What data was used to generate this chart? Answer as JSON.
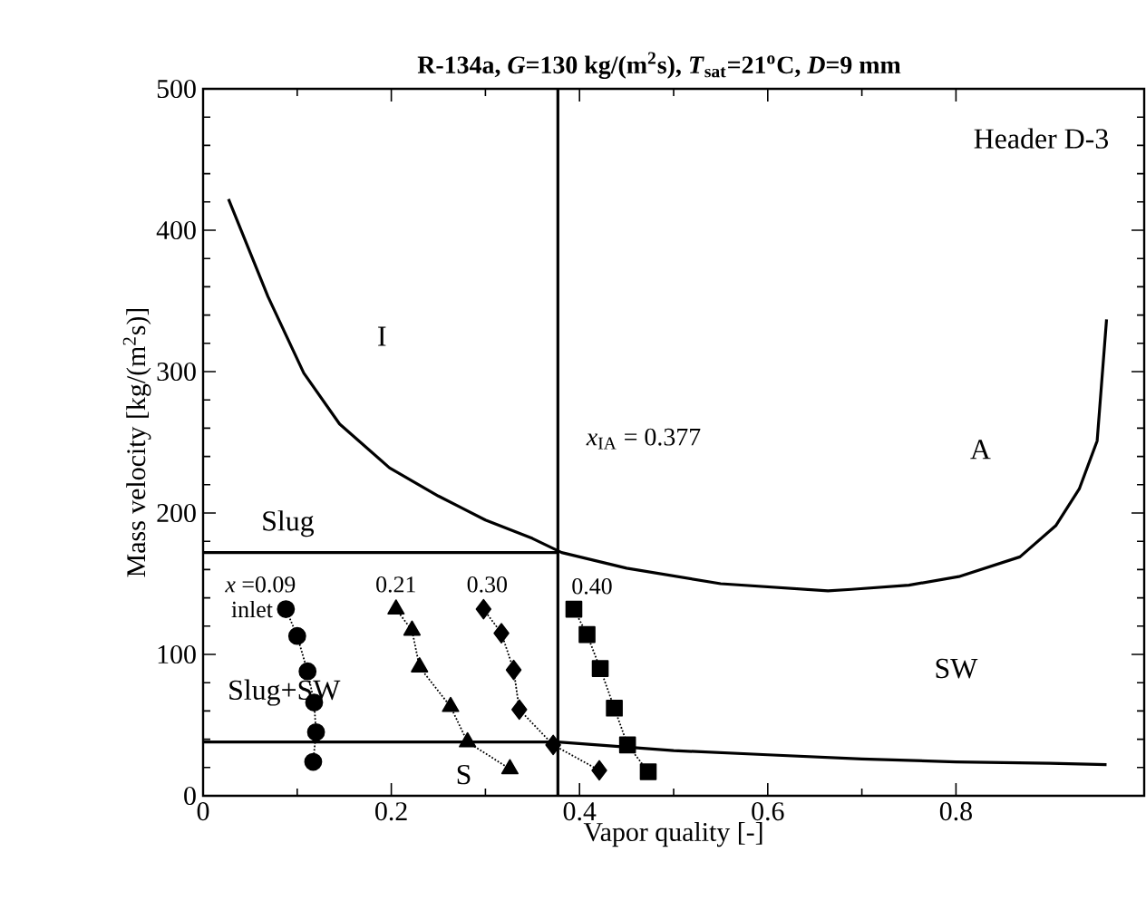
{
  "chart_data": {
    "type": "line",
    "title": "R-134a, *G*=130 kg/(m$^{2}$s), *T*$_{sat}$=21$^{o}$C, *D*=9 mm",
    "xlabel": "Vapor quality [-]",
    "ylabel": "Mass velocity [kg/(m$^{2}$s)]",
    "xlim": [
      0,
      1
    ],
    "ylim": [
      0,
      500
    ],
    "xticks": [
      0,
      0.2,
      0.4,
      0.6,
      0.8
    ],
    "yticks": [
      0,
      100,
      200,
      300,
      400,
      500
    ],
    "grid": false,
    "series": [
      {
        "color": "#000000",
        "marker": "none",
        "line_style": "solid",
        "x": [
          0.027,
          0.069,
          0.107,
          0.145,
          0.198,
          0.25,
          0.3,
          0.35,
          0.381,
          0.45,
          0.55,
          0.664,
          0.689,
          0.75,
          0.803,
          0.868,
          0.906,
          0.931,
          0.95,
          0.96
        ],
        "values": [
          422,
          353,
          299,
          263,
          232,
          212,
          195,
          182,
          172,
          161,
          150,
          145,
          146,
          149,
          155,
          169,
          191,
          217,
          251,
          337
        ]
      },
      {
        "color": "#000000",
        "marker": "none",
        "line_style": "solid",
        "x": [
          0.377,
          0.5,
          0.6,
          0.7,
          0.8,
          0.9,
          0.96
        ],
        "values": [
          38,
          32,
          29,
          26,
          24,
          23,
          22
        ]
      },
      {
        "color": "#000000",
        "marker": "none",
        "line_style": "solid",
        "x": [
          0.377,
          0.377
        ],
        "values": [
          0,
          500
        ]
      },
      {
        "color": "#000000",
        "marker": "none",
        "line_style": "solid",
        "x": [
          0,
          0.377
        ],
        "values": [
          172,
          172
        ]
      },
      {
        "color": "#000000",
        "marker": "none",
        "line_style": "solid",
        "x": [
          0,
          0.377
        ],
        "values": [
          38,
          38
        ]
      },
      {
        "color": "#000000",
        "marker": "circle",
        "line_style": "dotted",
        "x": [
          0.088,
          0.1,
          0.111,
          0.118,
          0.12,
          0.117
        ],
        "values": [
          132,
          113,
          88,
          66,
          45,
          24
        ]
      },
      {
        "color": "#000000",
        "marker": "triangle",
        "line_style": "dotted",
        "x": [
          0.205,
          0.222,
          0.23,
          0.263,
          0.281,
          0.326
        ],
        "values": [
          132,
          117,
          91,
          63,
          38,
          19
        ]
      },
      {
        "color": "#000000",
        "marker": "diamond",
        "line_style": "dotted",
        "x": [
          0.298,
          0.317,
          0.33,
          0.336,
          0.372,
          0.421
        ],
        "values": [
          132,
          115,
          89,
          61,
          36,
          18
        ]
      },
      {
        "color": "#000000",
        "marker": "square",
        "line_style": "dotted",
        "x": [
          0.394,
          0.408,
          0.422,
          0.437,
          0.451,
          0.473
        ],
        "values": [
          132,
          114,
          90,
          62,
          36,
          17
        ]
      }
    ],
    "annotations": [
      "Header D-3",
      "I",
      "A",
      "Slug",
      "Slug+SW",
      "SW",
      "S",
      "*x*$_{IA}$ = 0.377",
      {
        "text": "*x* =0.09",
        "x": 0.088,
        "y": 132
      },
      {
        "text": "inlet",
        "x": 0.088,
        "y": 132
      },
      {
        "text": "0.21",
        "x": 0.205,
        "y": 132
      },
      {
        "text": "0.30",
        "x": 0.298,
        "y": 132
      },
      {
        "text": "0.40",
        "x": 0.394,
        "y": 132
      }
    ]
  }
}
